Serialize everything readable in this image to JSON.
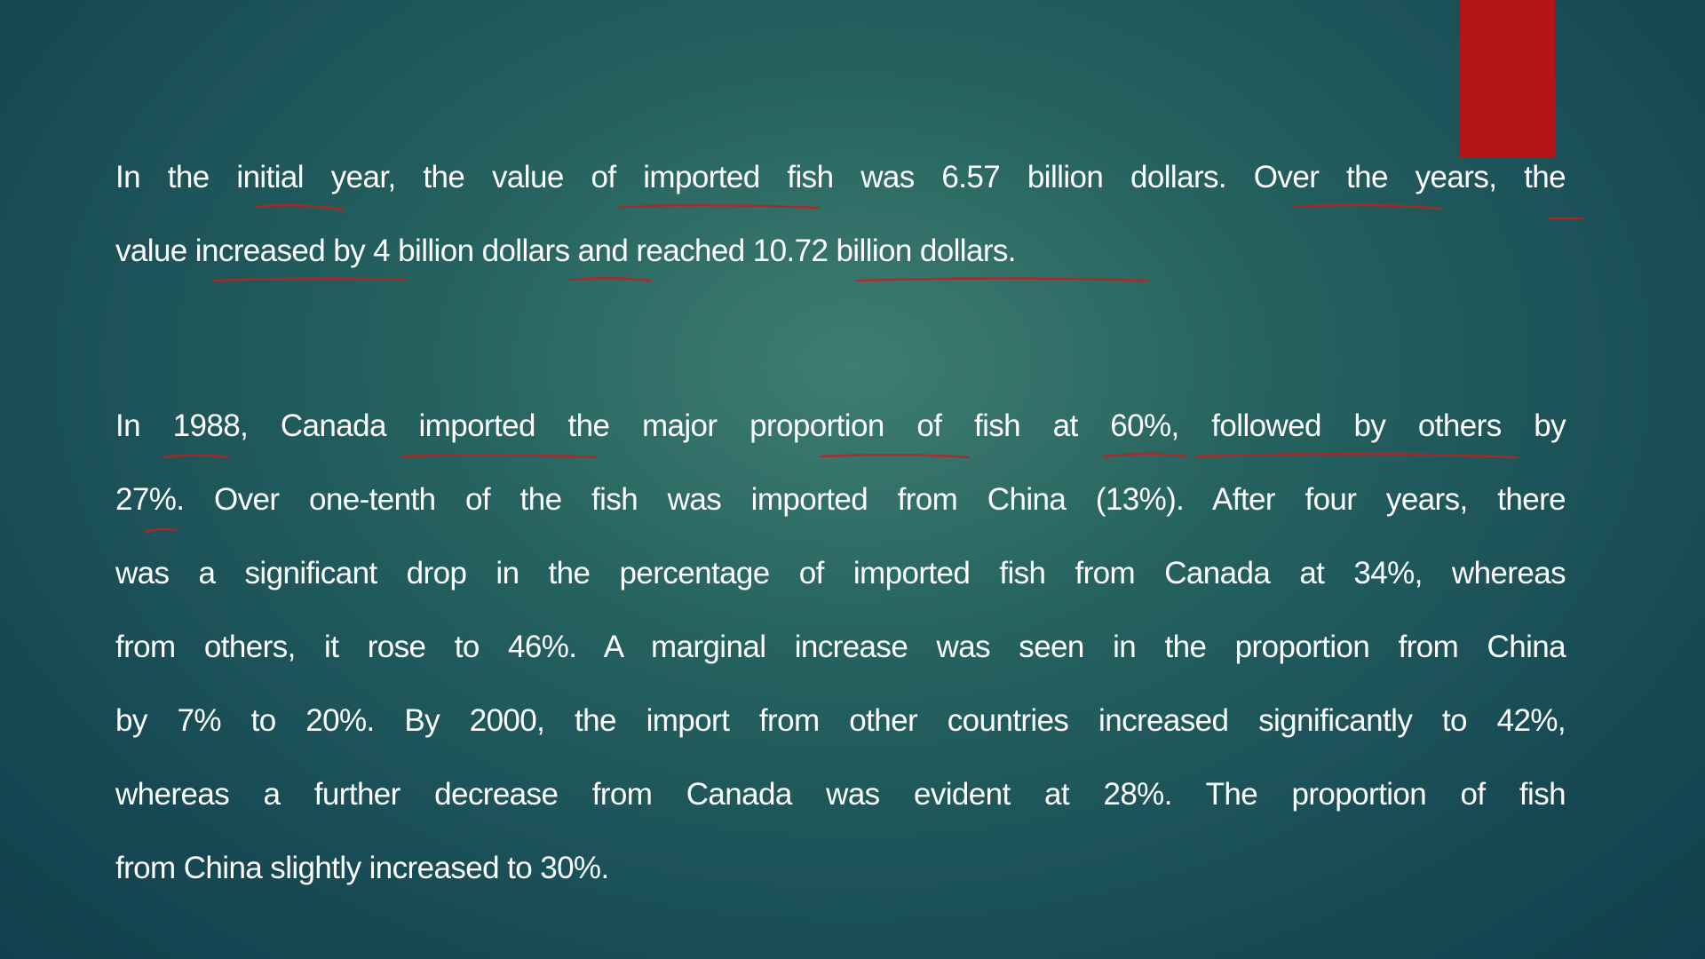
{
  "slide": {
    "accent_color": "#b31415",
    "annotation_color": "#c0201e",
    "paragraphs": [
      {
        "lines": [
          "In the initial year, the value of imported fish was 6.57 billion dollars. Over the years, the",
          "value increased by 4 billion dollars and reached 10.72 billion dollars."
        ]
      },
      {
        "lines": [
          "In 1988, Canada imported the major proportion of fish at 60%, followed by others by",
          "27%. Over one-tenth of the fish was imported from China (13%). After four years, there",
          "was a significant drop in the percentage of imported fish from Canada at 34%, whereas",
          "from others, it rose to 46%. A marginal increase was seen in the proportion from China",
          "by 7% to 20%. By 2000, the import from other countries increased significantly to 42%,",
          "whereas a further decrease from Canada was evident at 28%. The proportion of fish",
          "from China slightly increased to 30%."
        ]
      }
    ]
  }
}
